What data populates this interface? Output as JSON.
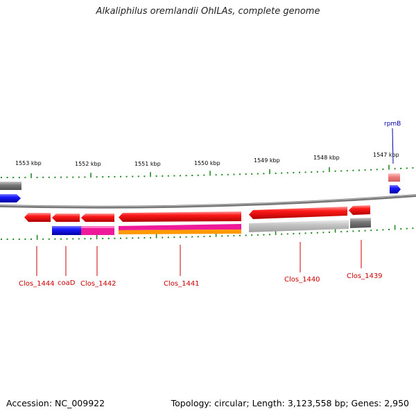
{
  "title": "Alkaliphilus oremlandii OhILAs, complete genome",
  "footer": {
    "accession": "Accession: NC_009922",
    "summary": "Topology: circular; Length: 3,123,558 bp; Genes: 2,950"
  },
  "ruler": {
    "unit": "kbp",
    "ticks": [
      "1553 kbp",
      "1552 kbp",
      "1551 kbp",
      "1550 kbp",
      "1549 kbp",
      "1548 kbp",
      "1547 kbp"
    ]
  },
  "genes": [
    {
      "label": "Clos_1444",
      "color": "#cc0000"
    },
    {
      "label": "coaD",
      "color": "#cc0000"
    },
    {
      "label": "Clos_1442",
      "color": "#cc0000"
    },
    {
      "label": "Clos_1441",
      "color": "#cc0000"
    },
    {
      "label": "Clos_1440",
      "color": "#cc0000"
    },
    {
      "label": "Clos_1439",
      "color": "#cc0000"
    },
    {
      "label": "rpmB",
      "color": "#0000aa"
    }
  ],
  "colors": {
    "feature_red": "#e00000",
    "feature_blue": "#0000ee",
    "feature_magenta": "#ee1199",
    "feature_orange": "#ff9900",
    "feature_gray": "#808080",
    "feature_lightgray": "#c0c0c0",
    "feature_pink": "#f08080",
    "backbone": "#888888",
    "tick_green": "#228822"
  }
}
